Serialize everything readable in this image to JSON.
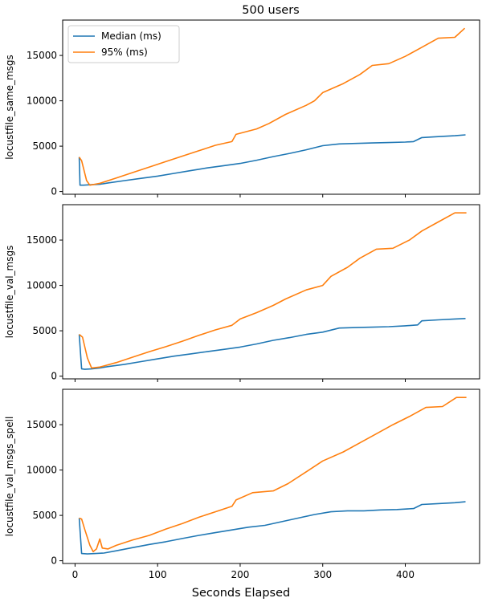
{
  "title": "500 users",
  "xlabel": "Seconds Elapsed",
  "legend": {
    "position": "upper-left",
    "entries": [
      "Median (ms)",
      "95% (ms)"
    ]
  },
  "colors": {
    "median": "#1f77b4",
    "p95": "#ff7f0e"
  },
  "chart_data": [
    {
      "type": "line",
      "ylabel": "locustfile_same_msgs",
      "xlim": [
        -15,
        490
      ],
      "ylim": [
        -300,
        18900
      ],
      "xticks": [
        0,
        100,
        200,
        300,
        400
      ],
      "yticks": [
        0,
        5000,
        10000,
        15000
      ],
      "series": [
        {
          "name": "Median (ms)",
          "x": [
            5,
            6,
            10,
            20,
            30,
            40,
            60,
            80,
            100,
            120,
            140,
            160,
            180,
            200,
            220,
            240,
            260,
            280,
            300,
            320,
            340,
            360,
            380,
            400,
            410,
            420,
            440,
            460,
            473
          ],
          "y": [
            3800,
            700,
            700,
            750,
            800,
            950,
            1200,
            1450,
            1700,
            2000,
            2300,
            2600,
            2850,
            3100,
            3450,
            3850,
            4200,
            4600,
            5050,
            5250,
            5300,
            5350,
            5400,
            5450,
            5500,
            5950,
            6050,
            6150,
            6250
          ]
        },
        {
          "name": "95% (ms)",
          "x": [
            5,
            8,
            14,
            18,
            30,
            50,
            70,
            90,
            110,
            130,
            150,
            170,
            190,
            195,
            220,
            235,
            255,
            280,
            290,
            300,
            325,
            345,
            360,
            380,
            400,
            420,
            440,
            460,
            472
          ],
          "y": [
            3800,
            3400,
            1200,
            700,
            900,
            1500,
            2100,
            2700,
            3300,
            3900,
            4500,
            5100,
            5500,
            6300,
            6900,
            7500,
            8500,
            9500,
            10000,
            10900,
            11900,
            12900,
            13900,
            14100,
            14900,
            15900,
            16900,
            17000,
            18000
          ]
        }
      ]
    },
    {
      "type": "line",
      "ylabel": "locustfile_val_msgs",
      "xlim": [
        -15,
        490
      ],
      "ylim": [
        -300,
        18900
      ],
      "xticks": [
        0,
        100,
        200,
        300,
        400
      ],
      "yticks": [
        0,
        5000,
        10000,
        15000
      ],
      "series": [
        {
          "name": "Median (ms)",
          "x": [
            5,
            8,
            12,
            20,
            30,
            40,
            60,
            80,
            100,
            120,
            140,
            160,
            180,
            200,
            220,
            240,
            260,
            280,
            300,
            320,
            340,
            360,
            380,
            400,
            415,
            420,
            440,
            460,
            473
          ],
          "y": [
            4600,
            800,
            750,
            800,
            900,
            1050,
            1300,
            1600,
            1900,
            2200,
            2450,
            2700,
            2950,
            3200,
            3550,
            3950,
            4250,
            4600,
            4850,
            5300,
            5350,
            5400,
            5450,
            5550,
            5650,
            6100,
            6200,
            6300,
            6350
          ]
        },
        {
          "name": "95% (ms)",
          "x": [
            5,
            9,
            15,
            20,
            30,
            50,
            70,
            90,
            110,
            130,
            150,
            170,
            190,
            200,
            220,
            240,
            255,
            280,
            300,
            310,
            330,
            345,
            365,
            385,
            405,
            420,
            440,
            460,
            474
          ],
          "y": [
            4600,
            4300,
            2000,
            900,
            1000,
            1500,
            2100,
            2700,
            3250,
            3850,
            4500,
            5100,
            5600,
            6300,
            7000,
            7800,
            8500,
            9500,
            10000,
            11000,
            12000,
            13000,
            14000,
            14100,
            15000,
            16000,
            17000,
            18000,
            18000
          ]
        }
      ]
    },
    {
      "type": "line",
      "ylabel": "locustfile_val_msgs_spell",
      "xlim": [
        -15,
        490
      ],
      "ylim": [
        -300,
        18900
      ],
      "xticks": [
        0,
        100,
        200,
        300,
        400
      ],
      "yticks": [
        0,
        5000,
        10000,
        15000
      ],
      "series": [
        {
          "name": "Median (ms)",
          "x": [
            5,
            8,
            15,
            25,
            35,
            50,
            70,
            90,
            110,
            130,
            150,
            170,
            190,
            210,
            230,
            250,
            270,
            290,
            310,
            330,
            350,
            370,
            390,
            410,
            420,
            440,
            460,
            473
          ],
          "y": [
            4700,
            800,
            750,
            800,
            850,
            1100,
            1450,
            1800,
            2100,
            2450,
            2800,
            3100,
            3400,
            3700,
            3900,
            4300,
            4700,
            5100,
            5400,
            5500,
            5500,
            5600,
            5650,
            5750,
            6200,
            6300,
            6400,
            6500
          ]
        },
        {
          "name": "95% (ms)",
          "x": [
            5,
            8,
            12,
            18,
            22,
            26,
            30,
            33,
            40,
            50,
            70,
            90,
            110,
            130,
            150,
            170,
            190,
            195,
            215,
            240,
            258,
            280,
            300,
            325,
            345,
            365,
            385,
            405,
            425,
            445,
            462,
            474
          ],
          "y": [
            4700,
            4600,
            3400,
            1700,
            1000,
            1300,
            2400,
            1400,
            1300,
            1700,
            2300,
            2800,
            3500,
            4100,
            4800,
            5400,
            6000,
            6700,
            7500,
            7700,
            8500,
            9800,
            11000,
            12000,
            13000,
            14000,
            15000,
            15900,
            16900,
            17000,
            18000,
            18000
          ]
        }
      ]
    }
  ]
}
